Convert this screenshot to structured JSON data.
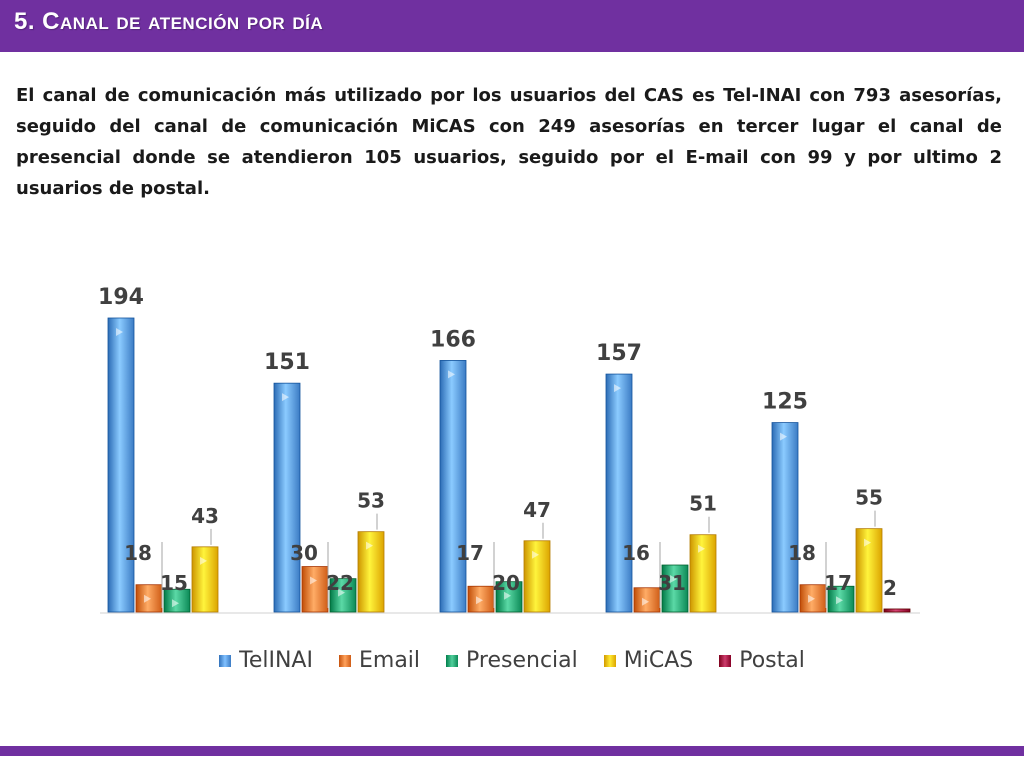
{
  "slide": {
    "title": "5. Canal de atención por día",
    "summary": "El canal de comunicación más utilizado por los usuarios del CAS es Tel-INAI con 793 asesorías, seguido del canal de comunicación MiCAS con 249 asesorías en tercer lugar el canal de presencial donde se atendieron 105 usuarios, seguido por el E-mail con 99 y por ultimo 2 usuarios de postal."
  },
  "colors": {
    "brand": "#7030a0",
    "TelINAI": "#4f8fd8",
    "Email": "#e3702a",
    "Presencial": "#1f9d6a",
    "MiCAS": "#f0b800",
    "Postal": "#9b0a3a"
  },
  "chart_data": {
    "type": "bar",
    "categories": [
      "",
      "",
      "",
      "",
      ""
    ],
    "series": [
      {
        "name": "TelINAI",
        "values": [
          194,
          151,
          166,
          157,
          125
        ]
      },
      {
        "name": "Email",
        "values": [
          18,
          30,
          17,
          16,
          18
        ]
      },
      {
        "name": "Presencial",
        "values": [
          15,
          22,
          20,
          31,
          17
        ]
      },
      {
        "name": "MiCAS",
        "values": [
          43,
          53,
          47,
          51,
          55
        ]
      },
      {
        "name": "Postal",
        "values": [
          null,
          null,
          null,
          null,
          2
        ]
      }
    ],
    "legend_position": "bottom",
    "data_labels": true,
    "grid": false,
    "ylim": [
      0,
      194
    ]
  }
}
